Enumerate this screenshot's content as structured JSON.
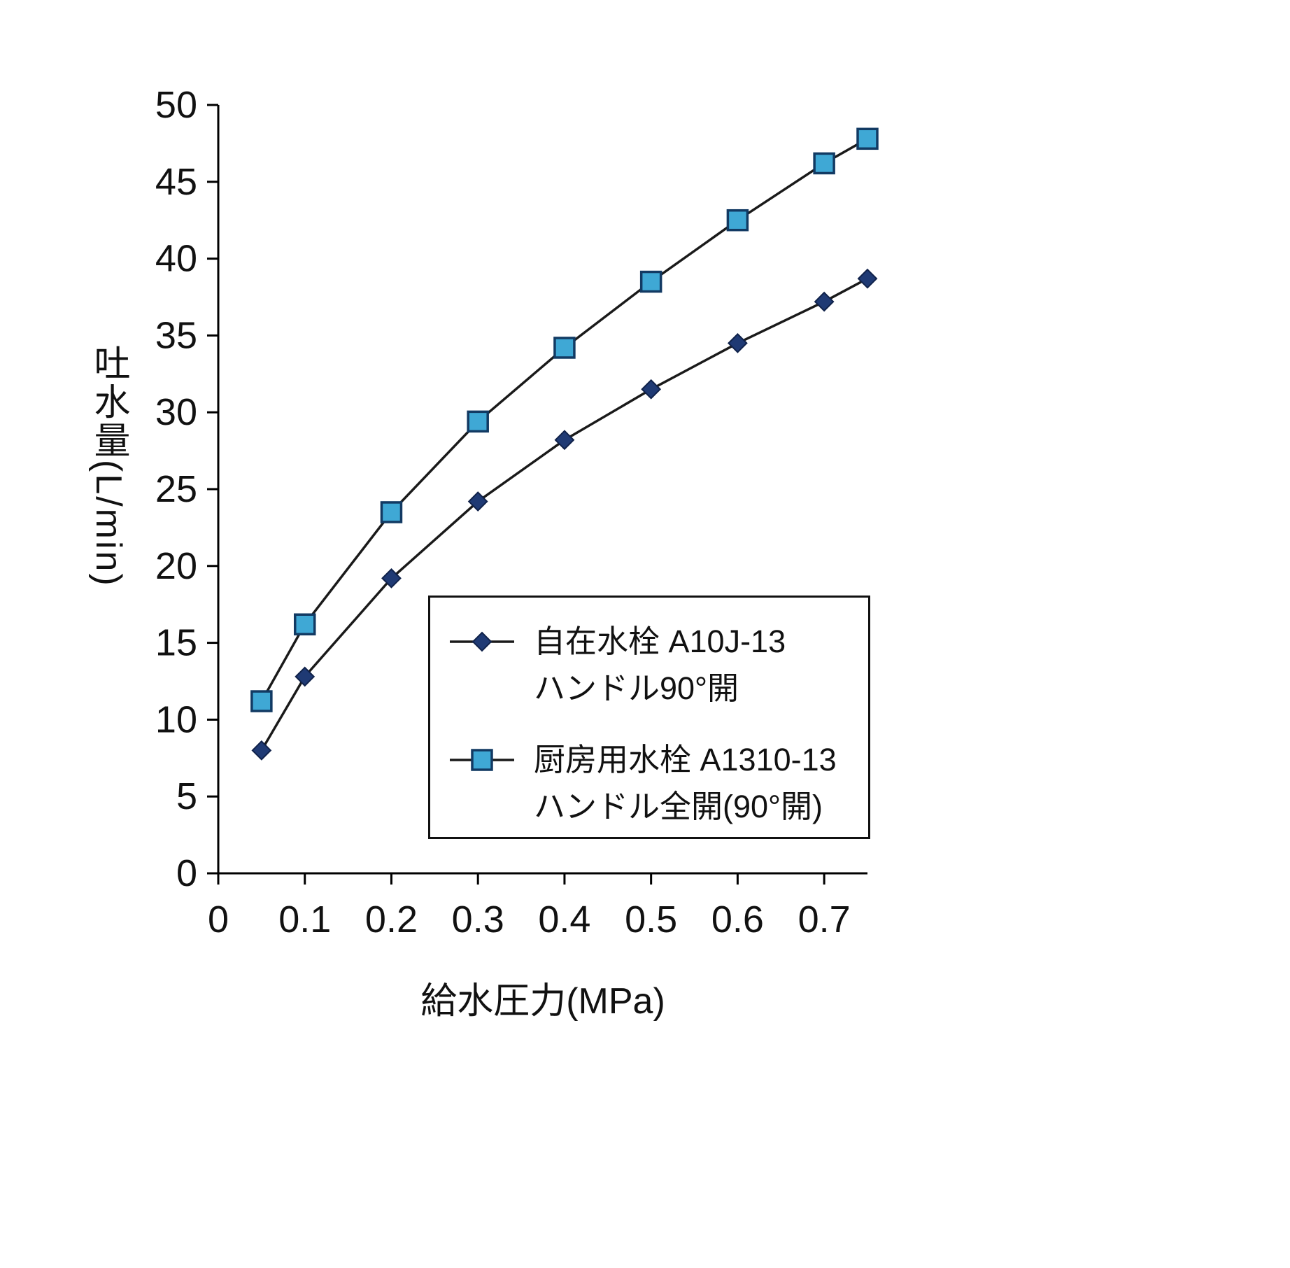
{
  "chart_data": {
    "type": "line",
    "xlabel": "給水圧力(MPa)",
    "ylabel": "吐水量(L/min)",
    "xlim": [
      0,
      0.75
    ],
    "ylim": [
      0,
      50
    ],
    "x_ticks": [
      0,
      0.1,
      0.2,
      0.3,
      0.4,
      0.5,
      0.6,
      0.7
    ],
    "y_ticks": [
      0,
      5,
      10,
      15,
      20,
      25,
      30,
      35,
      40,
      45,
      50
    ],
    "grid": false,
    "legend_position": "inside-lower-right",
    "x": [
      0.05,
      0.1,
      0.2,
      0.3,
      0.4,
      0.5,
      0.6,
      0.7,
      0.75
    ],
    "series": [
      {
        "name": "自在水栓 A10J-13 ハンドル90°開",
        "legend_line1": "自在水栓 A10J-13",
        "legend_line2": "ハンドル90°開",
        "marker": "diamond",
        "marker_color": "#1f3a74",
        "marker_edge_color": "#10224a",
        "line_color": "#1a1a1a",
        "values": [
          8.0,
          12.8,
          19.2,
          24.2,
          28.2,
          31.5,
          34.5,
          37.2,
          38.7
        ]
      },
      {
        "name": "厨房用水栓 A1310-13 ハンドル全開(90°開)",
        "legend_line1": "厨房用水栓 A1310-13",
        "legend_line2": "ハンドル全開(90°開)",
        "marker": "square",
        "marker_color": "#3fa8d5",
        "marker_edge_color": "#123a63",
        "line_color": "#1a1a1a",
        "values": [
          11.2,
          16.2,
          23.5,
          29.4,
          34.2,
          38.5,
          42.5,
          46.2,
          47.8
        ]
      }
    ],
    "axis_color": "#000000",
    "background_color": "#ffffff"
  }
}
